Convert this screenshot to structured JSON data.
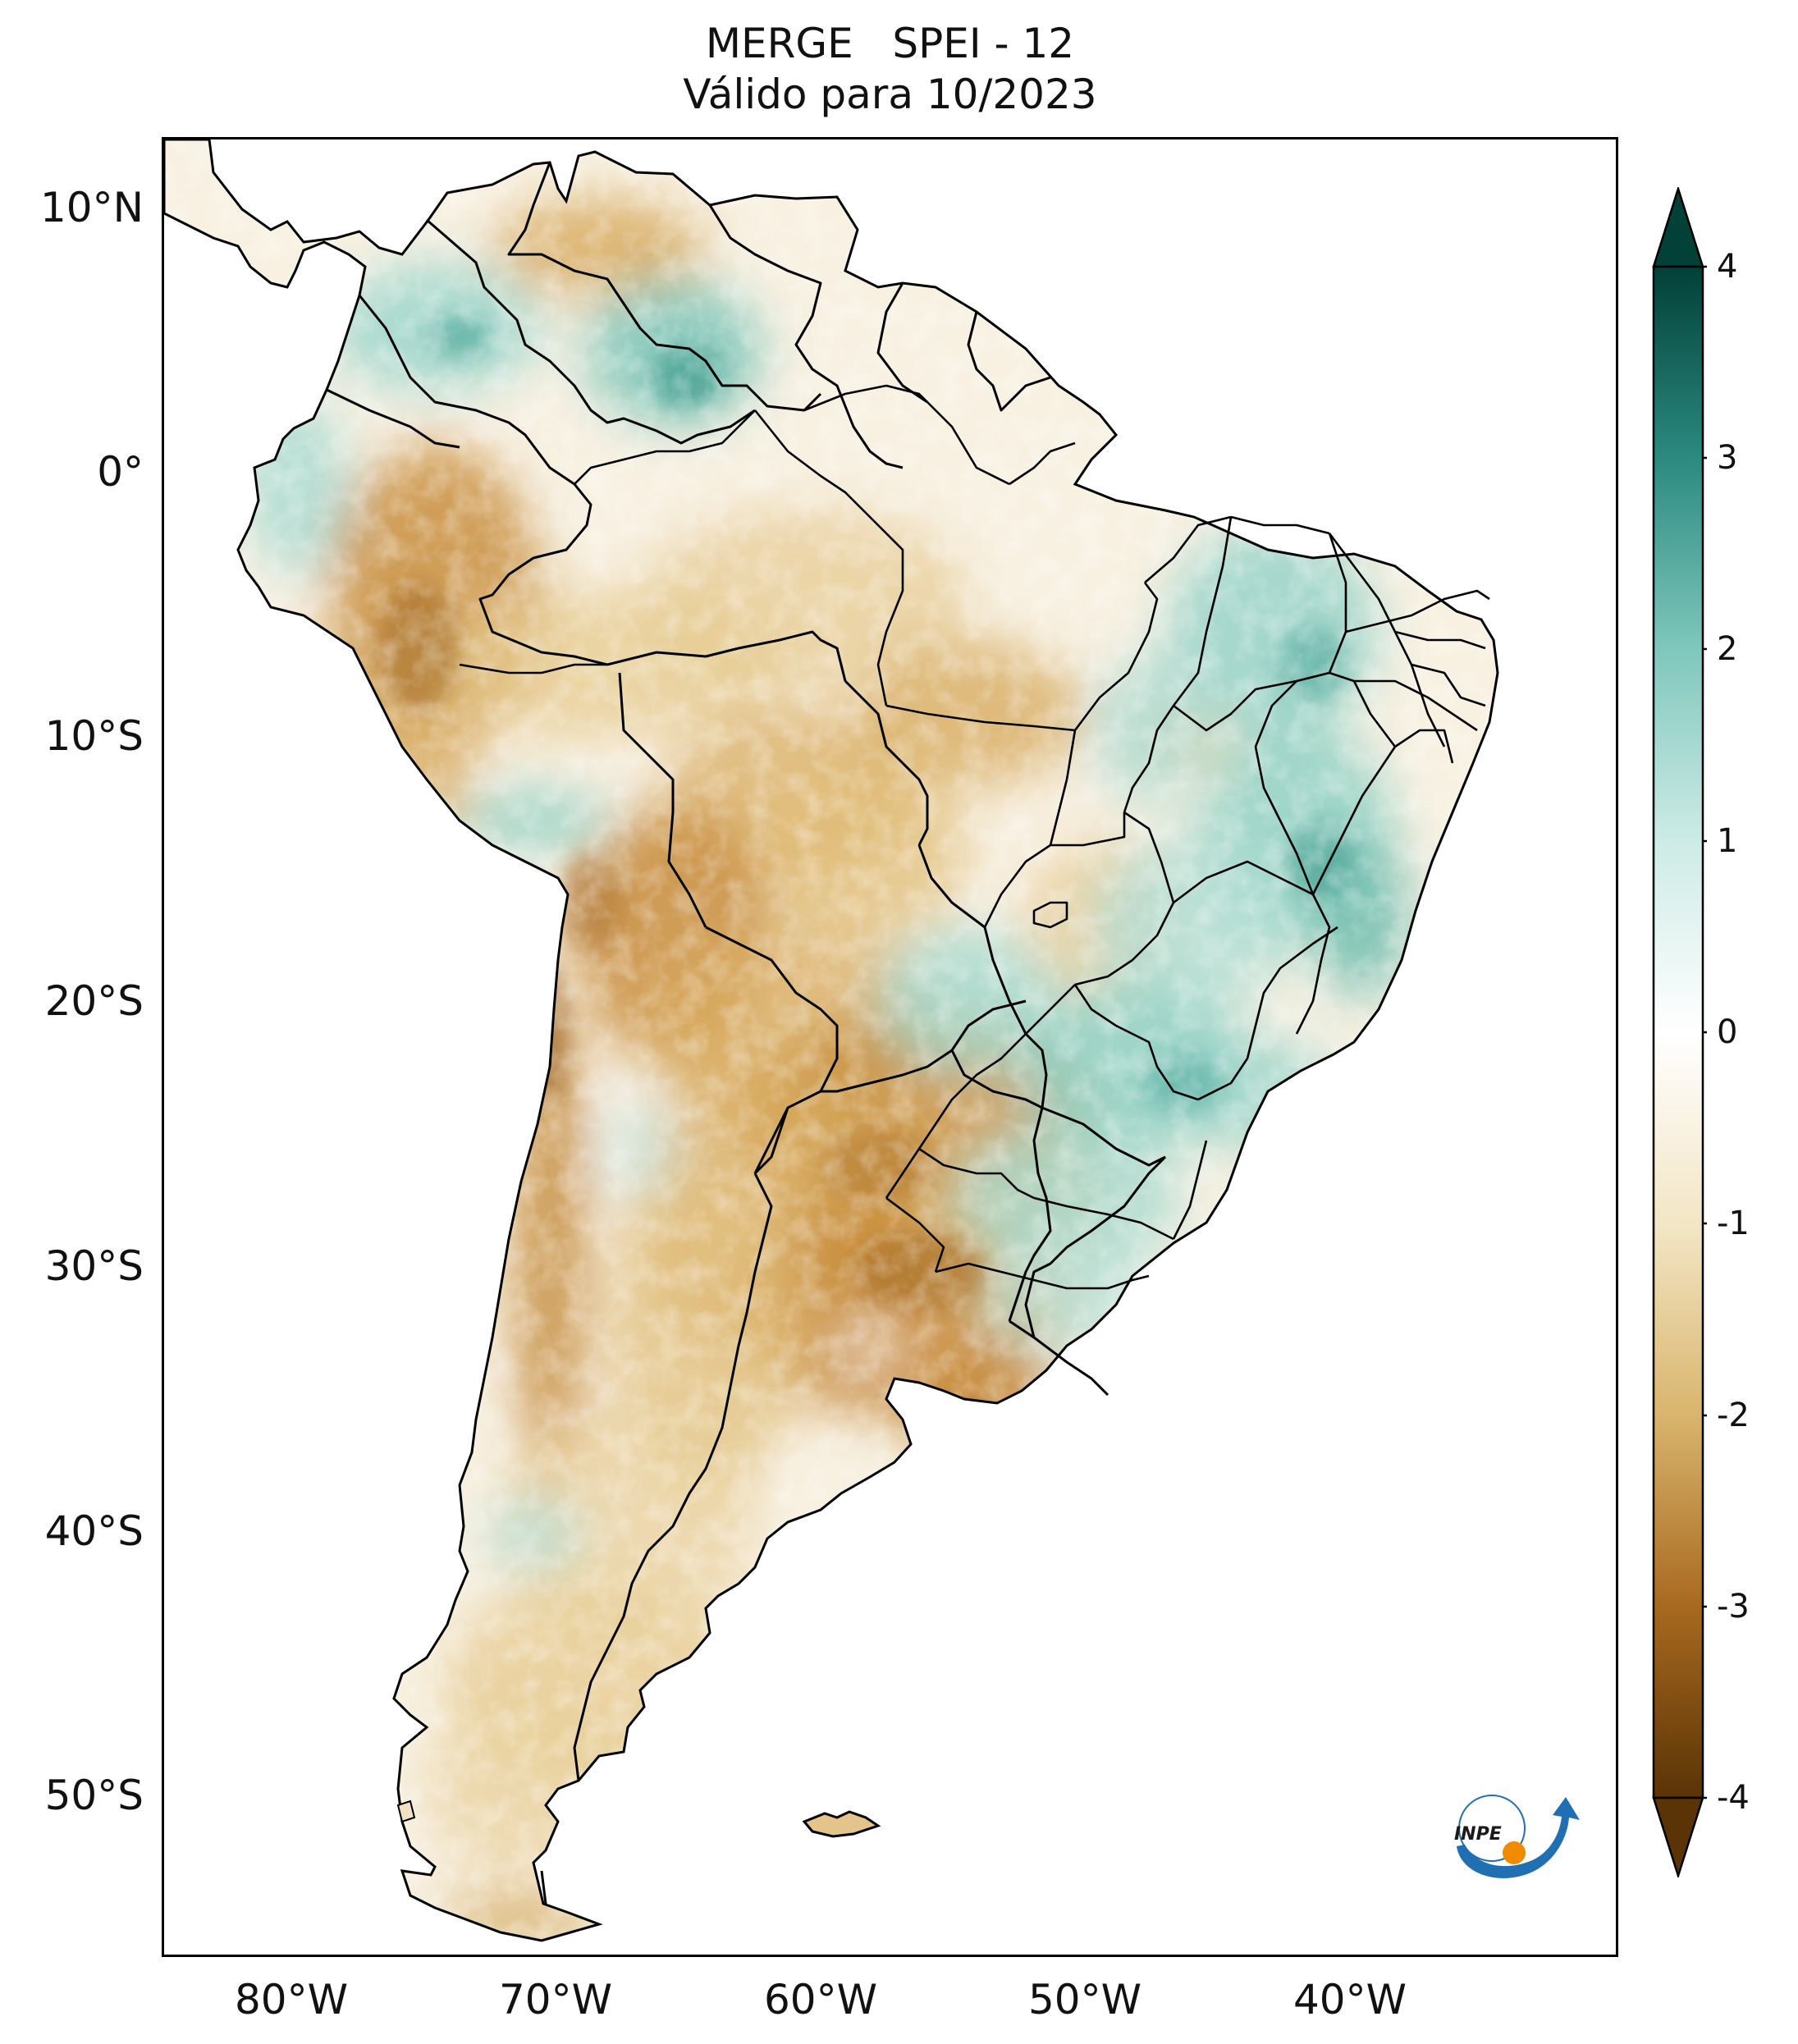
{
  "title": {
    "line1": "MERGE   SPEI - 12",
    "line2": "Válido para 10/2023"
  },
  "axes": {
    "latitude_labels": [
      "10°N",
      "0°",
      "10°S",
      "20°S",
      "30°S",
      "40°S",
      "50°S"
    ],
    "longitude_labels": [
      "80°W",
      "70°W",
      "60°W",
      "50°W",
      "40°W"
    ]
  },
  "colorbar": {
    "labels": [
      "4",
      "3",
      "2",
      "1",
      "0",
      "-1",
      "-2",
      "-3",
      "-4"
    ],
    "range": [
      -4,
      4
    ],
    "colors": {
      "very_dry": "#5a3406",
      "dry": "#a8691f",
      "moderately_dry": "#d9b56d",
      "slightly_dry": "#f3e6c6",
      "neutral": "#ffffff",
      "slightly_wet": "#cdebe6",
      "moderately_wet": "#7fc7bc",
      "wet": "#2b8a80",
      "very_wet": "#024038"
    }
  },
  "logo": {
    "text": "INPE",
    "colors": {
      "arc": "#1f6fb2",
      "dot": "#f08a00"
    }
  }
}
